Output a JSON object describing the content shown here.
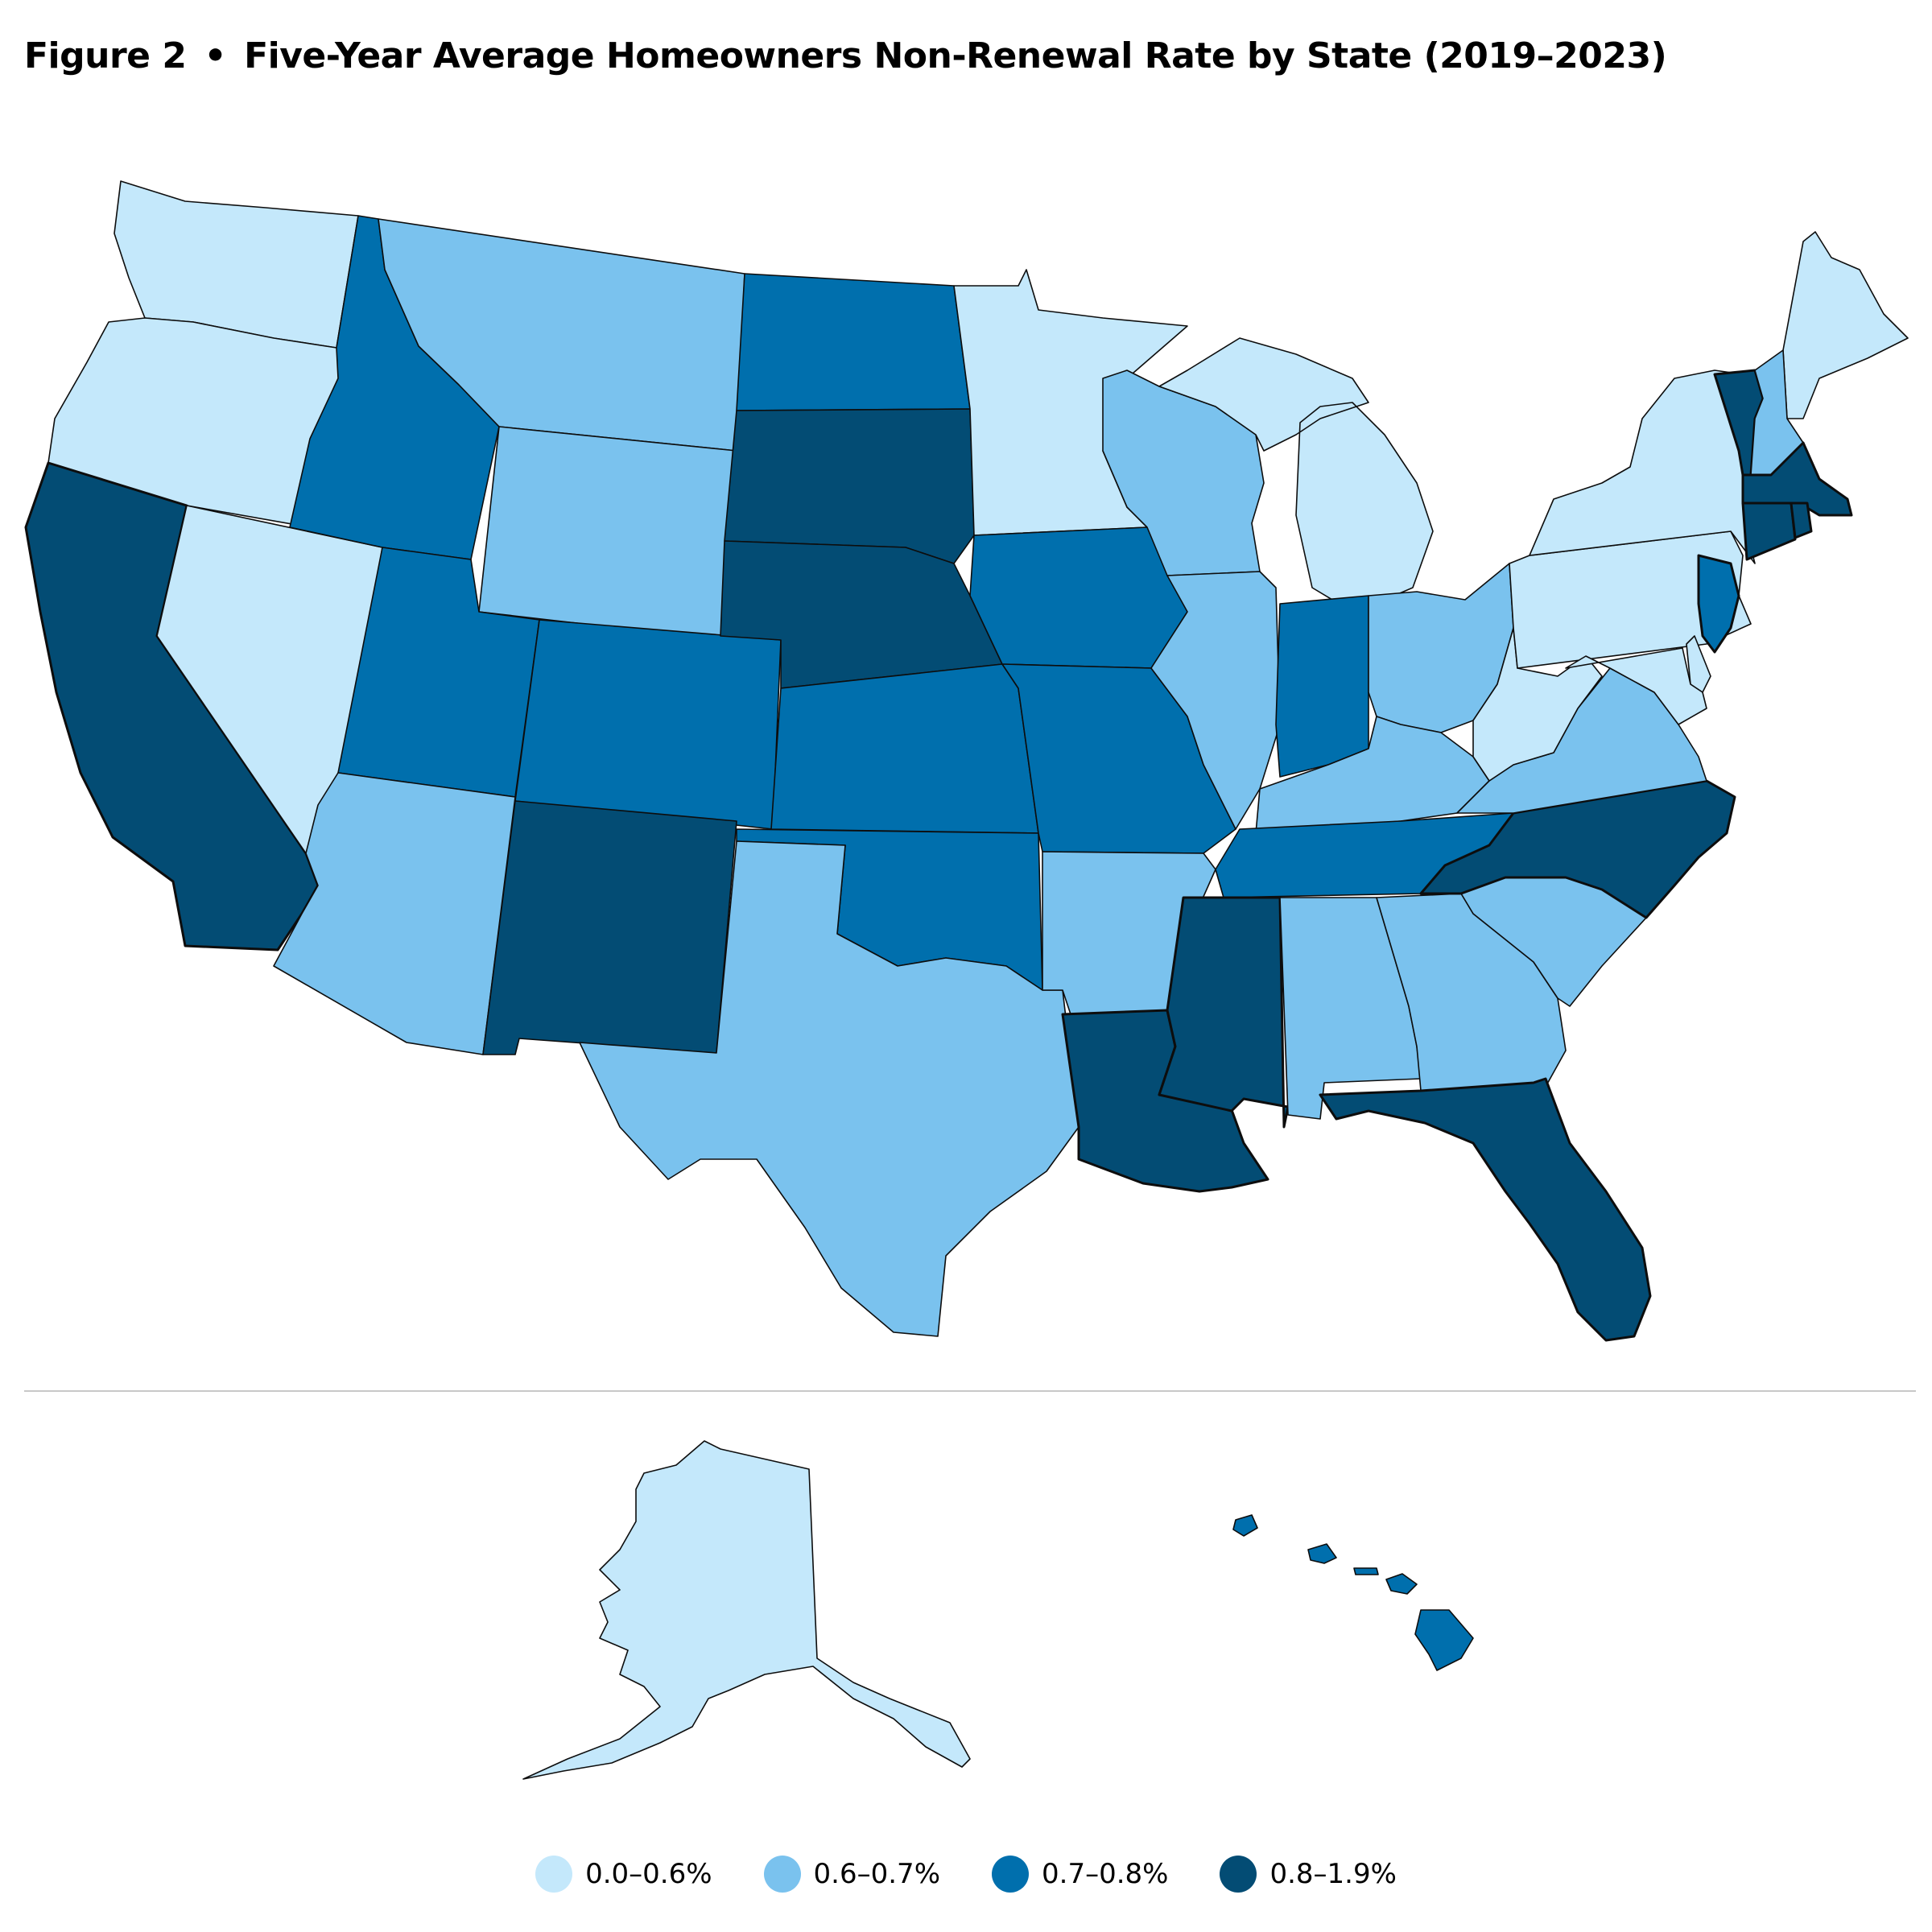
{
  "header": {
    "figure_label": "Figure 2",
    "separator": "•",
    "title": "Five-Year Average Homeowners Non-Renewal Rate by State (2019–2023)"
  },
  "legend": [
    {
      "label": "0.0–0.6%",
      "color": "#c4e8fb"
    },
    {
      "label": "0.6–0.7%",
      "color": "#7ac2ee"
    },
    {
      "label": "0.7–0.8%",
      "color": "#006fad"
    },
    {
      "label": "0.8–1.9%",
      "color": "#034c74"
    }
  ],
  "state_bins": {
    "WA": 0,
    "OR": 0,
    "CA": 3,
    "NV": 0,
    "ID": 2,
    "MT": 1,
    "WY": 1,
    "UT": 2,
    "AZ": 1,
    "CO": 2,
    "NM": 3,
    "ND": 2,
    "SD": 3,
    "NE": 3,
    "KS": 2,
    "OK": 2,
    "TX": 1,
    "MN": 0,
    "IA": 2,
    "MO": 2,
    "AR": 1,
    "LA": 3,
    "WI": 1,
    "IL": 1,
    "MI": 0,
    "IN": 2,
    "OH": 1,
    "KY": 1,
    "TN": 2,
    "MS": 3,
    "AL": 1,
    "GA": 1,
    "FL": 3,
    "SC": 1,
    "NC": 3,
    "VA": 1,
    "WV": 0,
    "PA": 0,
    "NY": 0,
    "ME": 0,
    "VT": 3,
    "NH": 1,
    "MA": 3,
    "CT": 3,
    "RI": 3,
    "NJ": 2,
    "DE": 0,
    "MD": 0,
    "AK": 0,
    "HI": 2
  }
}
